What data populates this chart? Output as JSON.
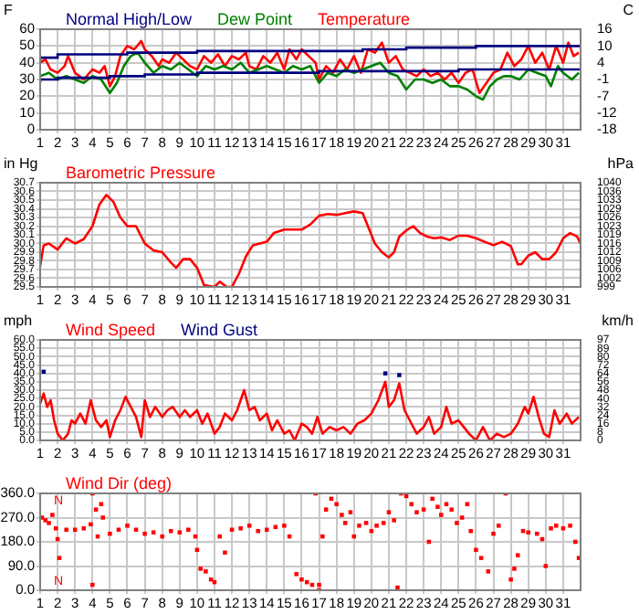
{
  "chart_data": [
    {
      "type": "line",
      "ylabel": "F",
      "y2label": "C",
      "legend": "top",
      "grid": true,
      "xlim": [
        1,
        32
      ],
      "xticks": [
        1,
        2,
        3,
        4,
        5,
        6,
        7,
        8,
        9,
        10,
        11,
        12,
        13,
        14,
        15,
        16,
        17,
        18,
        19,
        20,
        21,
        22,
        23,
        24,
        25,
        26,
        27,
        28,
        29,
        30,
        31
      ],
      "ylim": [
        0,
        60
      ],
      "yticks": [
        0,
        10,
        20,
        30,
        40,
        50,
        60
      ],
      "y2lim": [
        -17.8,
        15.6
      ],
      "y2ticks": [
        {
          "value": -17.8,
          "label": "-18"
        },
        {
          "value": -12.2,
          "label": "-12"
        },
        {
          "value": -6.7,
          "label": "-7"
        },
        {
          "value": -1.1,
          "label": "-1"
        },
        {
          "value": 4.4,
          "label": "4"
        },
        {
          "value": 10,
          "label": "10"
        },
        {
          "value": 15.6,
          "label": "16"
        }
      ],
      "series": [
        {
          "name": "Normal High/Low",
          "type": "step",
          "color": "#000080",
          "x": [
            1,
            2,
            6,
            10,
            19.5,
            22,
            26,
            31,
            32
          ],
          "values": [
            41,
            43,
            45,
            46,
            47,
            48,
            49,
            50,
            50
          ]
        },
        {
          "type": "step",
          "color": "#000080",
          "x": [
            1,
            2,
            5,
            7,
            10,
            17,
            25,
            31,
            32
          ],
          "values": [
            28,
            30,
            31,
            32,
            33,
            34,
            35,
            36,
            36
          ]
        },
        {
          "name": "Dew Point",
          "color": "#008000",
          "x": [
            1,
            1.5,
            2,
            2.5,
            3,
            3.5,
            4,
            4.5,
            5,
            5.4,
            5.8,
            6.2,
            6.6,
            7,
            7.5,
            8,
            8.5,
            9,
            9.5,
            10,
            10.5,
            11,
            11.5,
            12,
            12.5,
            13,
            13.5,
            14,
            14.5,
            15,
            15.5,
            16,
            16.5,
            17,
            17.5,
            18,
            18.5,
            19,
            19.5,
            20,
            20.5,
            21,
            21.5,
            22,
            22.5,
            23,
            23.5,
            24,
            24.5,
            25,
            25.5,
            26,
            26.4,
            26.8,
            27.2,
            27.6,
            28,
            28.5,
            29,
            29.5,
            30,
            30.3,
            30.7,
            31,
            31.5,
            31.9
          ],
          "values": [
            32,
            34,
            30,
            32,
            30,
            28,
            32,
            30,
            22,
            28,
            38,
            44,
            46,
            40,
            34,
            38,
            36,
            40,
            36,
            32,
            38,
            36,
            38,
            36,
            40,
            34,
            36,
            38,
            36,
            34,
            38,
            36,
            38,
            28,
            34,
            32,
            36,
            34,
            36,
            38,
            40,
            34,
            32,
            24,
            30,
            30,
            28,
            30,
            26,
            26,
            24,
            20,
            18,
            26,
            30,
            32,
            32,
            30,
            36,
            34,
            32,
            26,
            38,
            34,
            30,
            34
          ]
        },
        {
          "name": "Temperature",
          "color": "#ff0000",
          "x": [
            1,
            1.3,
            1.6,
            2,
            2.4,
            2.6,
            3,
            3.5,
            4,
            4.4,
            4.7,
            5,
            5.3,
            5.6,
            6,
            6.4,
            6.8,
            7,
            7.4,
            7.8,
            8,
            8.4,
            8.8,
            9.2,
            9.6,
            10,
            10.4,
            10.8,
            11.2,
            11.6,
            12,
            12.4,
            12.8,
            13,
            13.4,
            13.8,
            14.2,
            14.6,
            15,
            15.3,
            15.7,
            16,
            16.4,
            16.8,
            17,
            17.4,
            17.8,
            18.2,
            18.6,
            19,
            19.4,
            19.8,
            20.2,
            20.6,
            21,
            21.4,
            21.8,
            22.2,
            22.6,
            23,
            23.4,
            23.8,
            24.2,
            24.6,
            25,
            25.4,
            25.8,
            26.2,
            26.6,
            27,
            27.4,
            27.8,
            28.2,
            28.6,
            29,
            29.4,
            29.8,
            30.2,
            30.6,
            31,
            31.3,
            31.6,
            31.9
          ],
          "values": [
            40,
            42,
            36,
            34,
            38,
            44,
            34,
            30,
            36,
            34,
            38,
            26,
            32,
            44,
            50,
            48,
            53,
            48,
            44,
            38,
            42,
            40,
            46,
            42,
            38,
            36,
            44,
            40,
            45,
            38,
            44,
            42,
            46,
            38,
            36,
            44,
            40,
            46,
            36,
            48,
            42,
            48,
            44,
            40,
            30,
            38,
            34,
            42,
            36,
            44,
            34,
            48,
            46,
            52,
            40,
            44,
            36,
            34,
            32,
            36,
            32,
            34,
            30,
            34,
            28,
            34,
            36,
            22,
            28,
            34,
            36,
            46,
            38,
            42,
            50,
            40,
            46,
            36,
            50,
            40,
            52,
            44,
            46
          ]
        }
      ]
    },
    {
      "type": "line",
      "title": "Barometric Pressure",
      "ylabel": "in Hg",
      "y2label": "hPa",
      "grid": true,
      "xlim": [
        1,
        32
      ],
      "xticks": [
        1,
        2,
        3,
        4,
        5,
        6,
        7,
        8,
        9,
        10,
        11,
        12,
        13,
        14,
        15,
        16,
        17,
        18,
        19,
        20,
        21,
        22,
        23,
        24,
        25,
        26,
        27,
        28,
        29,
        30,
        31
      ],
      "ylim": [
        29.5,
        30.7
      ],
      "yticks": [
        29.5,
        29.6,
        29.7,
        29.8,
        29.9,
        {
          "value": 30,
          "label": "30.0"
        },
        30.1,
        30.2,
        30.3,
        30.4,
        30.5,
        30.6,
        30.7
      ],
      "y2lim": [
        999.0,
        1039.6
      ],
      "y2ticks": [
        {
          "value": 999.0,
          "label": "999"
        },
        {
          "value": 1002.4,
          "label": "1002"
        },
        {
          "value": 1005.8,
          "label": "1006"
        },
        {
          "value": 1009.1,
          "label": "1009"
        },
        {
          "value": 1012.5,
          "label": "1012"
        },
        {
          "value": 1015.9,
          "label": "1016"
        },
        {
          "value": 1019.3,
          "label": "1019"
        },
        {
          "value": 1022.7,
          "label": "1023"
        },
        {
          "value": 1026.1,
          "label": "1026"
        },
        {
          "value": 1029.5,
          "label": "1029"
        },
        {
          "value": 1032.8,
          "label": "1033"
        },
        {
          "value": 1036.2,
          "label": "1036"
        },
        {
          "value": 1039.6,
          "label": "1040"
        }
      ],
      "series": [
        {
          "color": "#ff0000",
          "x": [
            1,
            1.2,
            1.5,
            2,
            2.5,
            3,
            3.5,
            4,
            4.4,
            4.8,
            5.2,
            5.6,
            6,
            6.5,
            7,
            7.5,
            8,
            8.5,
            8.8,
            9.2,
            9.6,
            10,
            10.4,
            11,
            11.3,
            11.7,
            12,
            12.4,
            12.8,
            13.2,
            13.6,
            14,
            14.4,
            15,
            16,
            16.5,
            17,
            17.5,
            18,
            18.5,
            19,
            19.5,
            19.8,
            20.2,
            20.6,
            21,
            21.3,
            21.6,
            22,
            22.4,
            22.8,
            23.2,
            23.6,
            24,
            24.5,
            25,
            25.5,
            26,
            26.5,
            27,
            27.5,
            28,
            28.4,
            28.6,
            29,
            29.4,
            29.8,
            30.2,
            30.6,
            31,
            31.4,
            31.8,
            32
          ],
          "values": [
            29.74,
            29.98,
            30.0,
            29.93,
            30.06,
            30.0,
            30.05,
            30.2,
            30.45,
            30.56,
            30.48,
            30.3,
            30.2,
            30.2,
            30.0,
            29.92,
            29.9,
            29.78,
            29.72,
            29.82,
            29.82,
            29.72,
            29.52,
            29.5,
            29.56,
            29.5,
            29.5,
            29.65,
            29.85,
            29.98,
            30.0,
            30.02,
            30.12,
            30.16,
            30.16,
            30.22,
            30.32,
            30.34,
            30.33,
            30.35,
            30.37,
            30.35,
            30.2,
            30.0,
            29.9,
            29.84,
            29.9,
            30.08,
            30.15,
            30.2,
            30.12,
            30.08,
            30.06,
            30.07,
            30.04,
            30.09,
            30.09,
            30.06,
            30.02,
            29.98,
            30.02,
            29.97,
            29.76,
            29.76,
            29.86,
            29.9,
            29.82,
            29.82,
            29.9,
            30.06,
            30.12,
            30.08,
            30.0
          ]
        }
      ]
    },
    {
      "type": "line",
      "ylabel": "mph",
      "y2label": "km/h",
      "legend": "top",
      "grid": true,
      "xlim": [
        1,
        32
      ],
      "xticks": [
        1,
        2,
        3,
        4,
        5,
        6,
        7,
        8,
        9,
        10,
        11,
        12,
        13,
        14,
        15,
        16,
        17,
        18,
        19,
        20,
        21,
        22,
        23,
        24,
        25,
        26,
        27,
        28,
        29,
        30,
        31
      ],
      "ylim": [
        0,
        60
      ],
      "yticks": [
        {
          "value": 0,
          "label": "0.0"
        },
        {
          "value": 5,
          "label": "5.0"
        },
        {
          "value": 10,
          "label": "10.0"
        },
        {
          "value": 15,
          "label": "15.0"
        },
        {
          "value": 20,
          "label": "20.0"
        },
        {
          "value": 25,
          "label": "25.0"
        },
        {
          "value": 30,
          "label": "30.0"
        },
        {
          "value": 35,
          "label": "35.0"
        },
        {
          "value": 40,
          "label": "40.0"
        },
        {
          "value": 45,
          "label": "45.0"
        },
        {
          "value": 50,
          "label": "50.0"
        },
        {
          "value": 55,
          "label": "55.0"
        },
        {
          "value": 60,
          "label": "60.0"
        }
      ],
      "y2lim": [
        0,
        96.6
      ],
      "y2ticks": [
        0,
        {
          "value": 8.05,
          "label": "8"
        },
        {
          "value": 16.1,
          "label": "16"
        },
        {
          "value": 24.1,
          "label": "24"
        },
        {
          "value": 32.2,
          "label": "32"
        },
        {
          "value": 40.2,
          "label": "40"
        },
        {
          "value": 48.3,
          "label": "48"
        },
        {
          "value": 56.3,
          "label": "56"
        },
        {
          "value": 64.4,
          "label": "64"
        },
        {
          "value": 72.4,
          "label": "72"
        },
        {
          "value": 80.5,
          "label": "80"
        },
        {
          "value": 88.5,
          "label": "89"
        },
        {
          "value": 96.6,
          "label": "97"
        }
      ],
      "series": [
        {
          "name": "Wind Speed",
          "color": "#ff0000",
          "x": [
            1,
            1.2,
            1.4,
            1.6,
            1.8,
            2,
            2.3,
            2.6,
            2.8,
            3,
            3.3,
            3.6,
            3.9,
            4.2,
            4.5,
            4.8,
            5,
            5.3,
            5.6,
            5.9,
            6.2,
            6.5,
            6.8,
            7,
            7.3,
            7.6,
            8,
            8.3,
            8.6,
            9,
            9.3,
            9.6,
            10,
            10.3,
            10.6,
            11,
            11.3,
            11.6,
            12,
            12.3,
            12.7,
            13,
            13.3,
            13.6,
            14,
            14.3,
            14.6,
            15,
            15.3,
            15.6,
            16,
            16.3,
            16.6,
            16.9,
            17.2,
            17.6,
            18,
            18.4,
            18.8,
            19.2,
            19.6,
            20,
            20.4,
            20.8,
            21,
            21.3,
            21.6,
            21.9,
            22.2,
            22.6,
            23,
            23.3,
            23.6,
            24,
            24.3,
            24.6,
            25,
            25.3,
            25.6,
            26,
            26.4,
            26.8,
            27.2,
            27.6,
            28,
            28.4,
            28.8,
            29,
            29.3,
            29.6,
            29.9,
            30.2,
            30.5,
            30.8,
            31.2,
            31.5,
            31.9
          ],
          "values": [
            22,
            28,
            20,
            24,
            12,
            4,
            0,
            4,
            12,
            10,
            16,
            10,
            24,
            12,
            8,
            12,
            2,
            12,
            18,
            26,
            20,
            14,
            2,
            24,
            14,
            20,
            14,
            18,
            20,
            14,
            18,
            14,
            18,
            10,
            16,
            4,
            8,
            16,
            12,
            18,
            30,
            18,
            20,
            12,
            16,
            6,
            12,
            4,
            6,
            0,
            10,
            8,
            4,
            14,
            4,
            8,
            6,
            8,
            4,
            10,
            12,
            16,
            24,
            35,
            20,
            24,
            34,
            18,
            12,
            4,
            8,
            14,
            4,
            8,
            20,
            10,
            12,
            8,
            4,
            0,
            8,
            0,
            4,
            2,
            4,
            10,
            20,
            16,
            26,
            14,
            4,
            2,
            18,
            10,
            16,
            10,
            14
          ]
        },
        {
          "name": "Wind Gust",
          "type": "scatter",
          "marker": "square",
          "color": "#000080",
          "x": [
            1.2,
            20.8,
            21.6
          ],
          "values": [
            41,
            40,
            39
          ]
        }
      ]
    },
    {
      "type": "scatter",
      "title": "Wind Dir (deg)",
      "grid": true,
      "marker": "square",
      "xlim": [
        1,
        32
      ],
      "xticks": [
        1,
        2,
        3,
        4,
        5,
        6,
        7,
        8,
        9,
        10,
        11,
        12,
        13,
        14,
        15,
        16,
        17,
        18,
        19,
        20,
        21,
        22,
        23,
        24,
        25,
        26,
        27,
        28,
        29,
        30,
        31
      ],
      "ylim": [
        0,
        360
      ],
      "yticks": [
        {
          "value": 0,
          "label": "0.0"
        },
        {
          "value": 90,
          "label": "90.0"
        },
        {
          "value": 180,
          "label": "180.0"
        },
        {
          "value": 270,
          "label": "270.0"
        },
        {
          "value": 360,
          "label": "360.0"
        }
      ],
      "annotations": [
        "N",
        "N"
      ],
      "series": [
        {
          "color": "#ff0000",
          "x": [
            1.1,
            1.3,
            1.5,
            1.7,
            1.9,
            2,
            2.1,
            2.5,
            3,
            3.5,
            3.9,
            4,
            4,
            4.2,
            4.5,
            4.6,
            4.3,
            5,
            5.5,
            6,
            6.5,
            7,
            7.5,
            8,
            8.5,
            9,
            9.5,
            9.9,
            10,
            10.2,
            10.5,
            10.8,
            11,
            11.3,
            11.6,
            12,
            12.5,
            13,
            13.5,
            14,
            14.5,
            15,
            15.3,
            15.7,
            16,
            16.3,
            16.6,
            16.8,
            17,
            17,
            17.2,
            17.4,
            17.7,
            18,
            18.3,
            18.5,
            18.8,
            19,
            19.3,
            19.7,
            20,
            20.3,
            20.7,
            21,
            21.3,
            21.5,
            21.7,
            22,
            22.3,
            22.6,
            23,
            23.3,
            23.5,
            23.8,
            24,
            24.3,
            24.6,
            24.9,
            25.2,
            25.5,
            25.7,
            26,
            26.3,
            26.7,
            27,
            27.3,
            27.7,
            28,
            28.2,
            28.4,
            28.7,
            29,
            29.5,
            29.8,
            30,
            30.3,
            30.6,
            31,
            31.4,
            31.7,
            31.9
          ],
          "values": [
            270,
            260,
            250,
            280,
            230,
            190,
            120,
            225,
            225,
            230,
            245,
            360,
            20,
            300,
            320,
            270,
            200,
            210,
            225,
            240,
            225,
            210,
            215,
            200,
            220,
            215,
            225,
            200,
            150,
            80,
            70,
            40,
            30,
            200,
            140,
            225,
            230,
            240,
            220,
            225,
            235,
            240,
            200,
            60,
            40,
            30,
            20,
            360,
            0,
            20,
            200,
            300,
            340,
            320,
            280,
            250,
            290,
            200,
            240,
            250,
            220,
            240,
            250,
            290,
            260,
            10,
            360,
            350,
            320,
            290,
            300,
            180,
            340,
            310,
            280,
            320,
            300,
            250,
            270,
            320,
            220,
            150,
            120,
            70,
            210,
            240,
            360,
            40,
            80,
            130,
            220,
            215,
            210,
            190,
            90,
            230,
            240,
            230,
            240,
            180,
            120
          ]
        }
      ]
    }
  ]
}
